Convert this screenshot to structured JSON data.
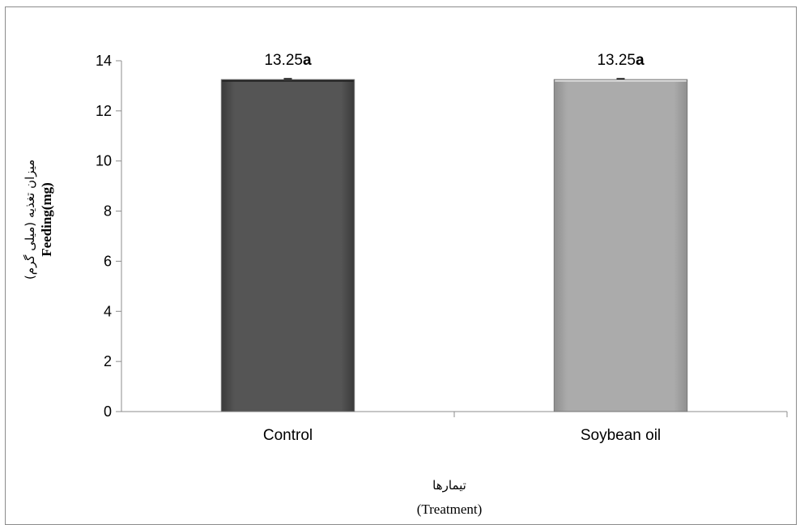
{
  "chart_data": {
    "type": "bar",
    "categories": [
      "Control",
      "Soybean oil"
    ],
    "values": [
      13.25,
      13.25
    ],
    "data_labels": [
      {
        "value": "13.25",
        "letter": "a"
      },
      {
        "value": "13.25",
        "letter": "a"
      }
    ],
    "ylabel_fa": "میزان تغذیه (میلی گرم)",
    "ylabel_en": "Feeding(mg)",
    "xlabel_fa": "تیمارها",
    "xlabel_en": "(Treatment)",
    "ylim": [
      0,
      14
    ],
    "yticks": [
      "0",
      "2",
      "4",
      "6",
      "8",
      "10",
      "12",
      "14"
    ],
    "grid": false,
    "legend": "none",
    "colors": [
      "#555555",
      "#a9a9a9"
    ],
    "error_bars": true
  }
}
